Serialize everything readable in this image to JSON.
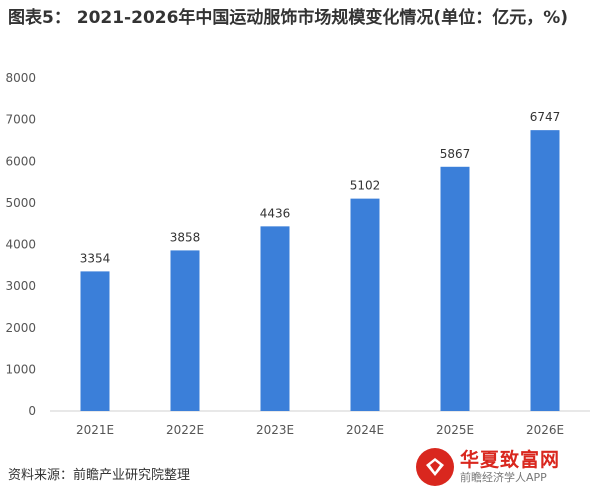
{
  "title": "图表5：  2021-2026年中国运动服饰市场规模变化情况(单位：亿元，%)",
  "source": "资料来源：前瞻产业研究院整理",
  "badge": {
    "name": "华夏致富网",
    "sub": "前瞻经济学人APP"
  },
  "chart_data": {
    "type": "bar",
    "categories": [
      "2021E",
      "2022E",
      "2023E",
      "2024E",
      "2025E",
      "2026E"
    ],
    "values": [
      3354,
      3858,
      4436,
      5102,
      5867,
      6747
    ],
    "ylim": [
      0,
      8000
    ],
    "yticks": [
      0,
      1000,
      2000,
      3000,
      4000,
      5000,
      6000,
      7000,
      8000
    ],
    "grid": false,
    "bar_color": "#3b7fd9",
    "data_labels": [
      "3354",
      "3858",
      "4436",
      "5102",
      "5867",
      "6747"
    ]
  }
}
